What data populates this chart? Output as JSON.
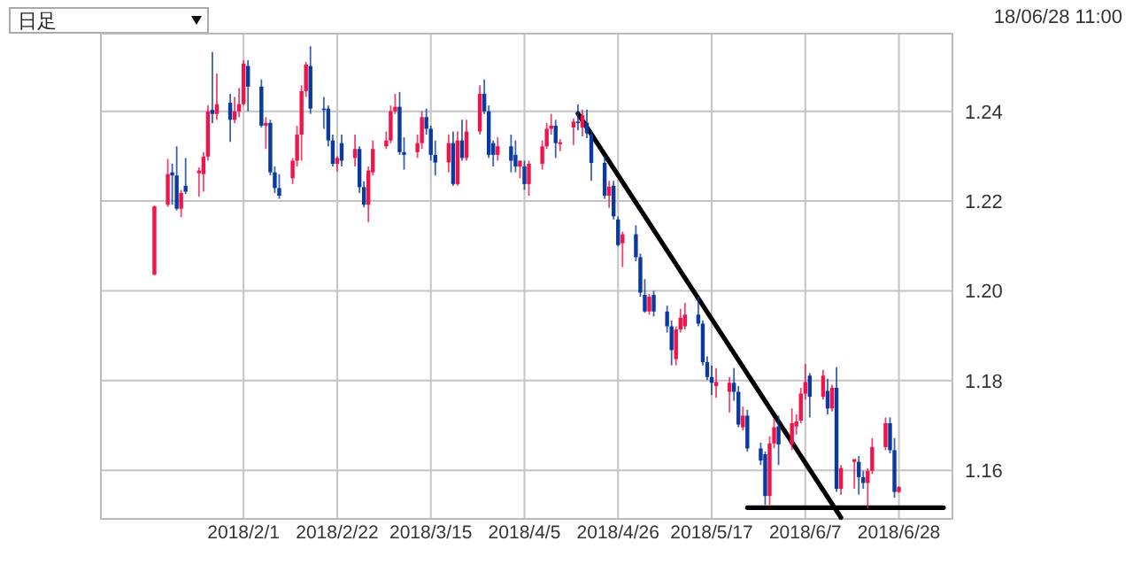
{
  "chart_data": {
    "type": "candlestick",
    "annotations": [
      "日足",
      "18/06/28 11:00"
    ],
    "grid": true,
    "xlim": [
      "2017-12-31",
      "2018-07-10"
    ],
    "ylim": [
      1.1492,
      1.2573
    ],
    "xticks": [
      {
        "value": "2018-02-01",
        "label": "2018/2/1"
      },
      {
        "value": "2018-02-22",
        "label": "2018/2/22"
      },
      {
        "value": "2018-03-15",
        "label": "2018/3/15"
      },
      {
        "value": "2018-04-05",
        "label": "2018/4/5"
      },
      {
        "value": "2018-04-26",
        "label": "2018/4/26"
      },
      {
        "value": "2018-05-17",
        "label": "2018/5/17"
      },
      {
        "value": "2018-06-07",
        "label": "2018/6/7"
      },
      {
        "value": "2018-06-28",
        "label": "2018/6/28"
      }
    ],
    "yticks": [
      1.16,
      1.18,
      {
        "value": 1.2,
        "label": "1.20"
      },
      1.22,
      1.24
    ],
    "series": [
      {
        "type": "candlestick",
        "x": [
          "2018-01-12",
          "2018-01-15",
          "2018-01-16",
          "2018-01-17",
          "2018-01-18",
          "2018-01-19",
          "2018-01-22",
          "2018-01-23",
          "2018-01-24",
          "2018-01-25",
          "2018-01-26",
          "2018-01-29",
          "2018-01-30",
          "2018-01-31",
          "2018-02-01",
          "2018-02-02",
          "2018-02-05",
          "2018-02-06",
          "2018-02-07",
          "2018-02-08",
          "2018-02-09",
          "2018-02-12",
          "2018-02-13",
          "2018-02-14",
          "2018-02-15",
          "2018-02-16",
          "2018-02-19",
          "2018-02-20",
          "2018-02-21",
          "2018-02-22",
          "2018-02-23",
          "2018-02-26",
          "2018-02-27",
          "2018-02-28",
          "2018-03-01",
          "2018-03-02",
          "2018-03-05",
          "2018-03-06",
          "2018-03-07",
          "2018-03-08",
          "2018-03-09",
          "2018-03-12",
          "2018-03-13",
          "2018-03-14",
          "2018-03-15",
          "2018-03-16",
          "2018-03-19",
          "2018-03-20",
          "2018-03-21",
          "2018-03-22",
          "2018-03-23",
          "2018-03-26",
          "2018-03-27",
          "2018-03-28",
          "2018-03-29",
          "2018-03-30",
          "2018-04-02",
          "2018-04-03",
          "2018-04-04",
          "2018-04-05",
          "2018-04-06",
          "2018-04-09",
          "2018-04-10",
          "2018-04-11",
          "2018-04-12",
          "2018-04-13",
          "2018-04-16",
          "2018-04-17",
          "2018-04-18",
          "2018-04-19",
          "2018-04-20",
          "2018-04-23",
          "2018-04-24",
          "2018-04-25",
          "2018-04-26",
          "2018-04-27",
          "2018-04-30",
          "2018-05-01",
          "2018-05-02",
          "2018-05-03",
          "2018-05-04",
          "2018-05-07",
          "2018-05-08",
          "2018-05-09",
          "2018-05-10",
          "2018-05-11",
          "2018-05-14",
          "2018-05-15",
          "2018-05-16",
          "2018-05-17",
          "2018-05-18",
          "2018-05-21",
          "2018-05-22",
          "2018-05-23",
          "2018-05-24",
          "2018-05-25",
          "2018-05-28",
          "2018-05-29",
          "2018-05-30",
          "2018-05-31",
          "2018-06-01",
          "2018-06-04",
          "2018-06-05",
          "2018-06-06",
          "2018-06-07",
          "2018-06-08",
          "2018-06-11",
          "2018-06-12",
          "2018-06-13",
          "2018-06-14",
          "2018-06-15",
          "2018-06-18",
          "2018-06-19",
          "2018-06-20",
          "2018-06-21",
          "2018-06-22",
          "2018-06-25",
          "2018-06-26",
          "2018-06-27",
          "2018-06-28"
        ],
        "ohlc": [
          [
            1.2036,
            1.219,
            1.2035,
            1.2188
          ],
          [
            1.2192,
            1.2294,
            1.2187,
            1.226
          ],
          [
            1.2264,
            1.2283,
            1.2192,
            1.2257
          ],
          [
            1.2257,
            1.2322,
            1.2179,
            1.2183
          ],
          [
            1.2183,
            1.2225,
            1.2164,
            1.2218
          ],
          [
            1.2234,
            1.2296,
            1.2216,
            1.2221
          ],
          [
            1.2262,
            1.2275,
            1.221,
            1.2268
          ],
          [
            1.226,
            1.2309,
            1.2221,
            1.2299
          ],
          [
            1.2299,
            1.2413,
            1.229,
            1.24
          ],
          [
            1.2403,
            1.2532,
            1.2374,
            1.2394
          ],
          [
            1.2394,
            1.2484,
            1.2381,
            1.2416
          ],
          [
            1.2419,
            1.2439,
            1.2332,
            1.2381
          ],
          [
            1.2381,
            1.2432,
            1.2374,
            1.24
          ],
          [
            1.24,
            1.2452,
            1.2387,
            1.2416
          ],
          [
            1.2416,
            1.2514,
            1.2413,
            1.2506
          ],
          [
            1.2501,
            1.2514,
            1.24,
            1.2455
          ],
          [
            1.2455,
            1.2471,
            1.2364,
            1.2368
          ],
          [
            1.2368,
            1.2387,
            1.2316,
            1.2374
          ],
          [
            1.2374,
            1.2381,
            1.2257,
            1.2264
          ],
          [
            1.2264,
            1.2277,
            1.2218,
            1.2229
          ],
          [
            1.2229,
            1.226,
            1.2205,
            1.2212
          ],
          [
            1.2251,
            1.2296,
            1.2238,
            1.229
          ],
          [
            1.229,
            1.2368,
            1.2277,
            1.2348
          ],
          [
            1.2348,
            1.2458,
            1.229,
            1.2445
          ],
          [
            1.2445,
            1.251,
            1.2432,
            1.2504
          ],
          [
            1.2501,
            1.2545,
            1.2394,
            1.2406
          ],
          [
            1.2406,
            1.2432,
            1.2361,
            1.2403
          ],
          [
            1.2406,
            1.2413,
            1.2322,
            1.2335
          ],
          [
            1.2335,
            1.2348,
            1.2277,
            1.2283
          ],
          [
            1.2283,
            1.23,
            1.2266,
            1.2296
          ],
          [
            1.2329,
            1.2348,
            1.2277,
            1.229
          ],
          [
            1.2296,
            1.2348,
            1.2277,
            1.2316
          ],
          [
            1.2316,
            1.2322,
            1.2218,
            1.2231
          ],
          [
            1.2231,
            1.2244,
            1.2186,
            1.2192
          ],
          [
            1.2192,
            1.2277,
            1.2153,
            1.2268
          ],
          [
            1.2264,
            1.2335,
            1.2257,
            1.2316
          ],
          [
            1.2322,
            1.2355,
            1.2316,
            1.2335
          ],
          [
            1.2335,
            1.2413,
            1.2329,
            1.24
          ],
          [
            1.24,
            1.2439,
            1.2394,
            1.241
          ],
          [
            1.241,
            1.2443,
            1.2303,
            1.2309
          ],
          [
            1.2309,
            1.2342,
            1.227,
            1.2303
          ],
          [
            1.2309,
            1.2348,
            1.2296,
            1.2329
          ],
          [
            1.2329,
            1.24,
            1.2316,
            1.2387
          ],
          [
            1.2387,
            1.2406,
            1.2348,
            1.2361
          ],
          [
            1.2361,
            1.2368,
            1.229,
            1.2303
          ],
          [
            1.2303,
            1.2335,
            1.2257,
            1.2286
          ],
          [
            1.2286,
            1.2348,
            1.2264,
            1.2329
          ],
          [
            1.2329,
            1.2355,
            1.2234,
            1.2238
          ],
          [
            1.2238,
            1.2355,
            1.2234,
            1.2335
          ],
          [
            1.2335,
            1.2381,
            1.229,
            1.2296
          ],
          [
            1.2296,
            1.2381,
            1.229,
            1.2355
          ],
          [
            1.2355,
            1.2458,
            1.2348,
            1.2439
          ],
          [
            1.2439,
            1.2471,
            1.2394,
            1.24
          ],
          [
            1.24,
            1.2413,
            1.2296,
            1.2303
          ],
          [
            1.2329,
            1.2335,
            1.2277,
            1.2303
          ],
          [
            1.2303,
            1.2342,
            1.229,
            1.2322
          ],
          [
            1.2322,
            1.2348,
            1.2264,
            1.229
          ],
          [
            1.2303,
            1.2335,
            1.2264,
            1.2277
          ],
          [
            1.2277,
            1.229,
            1.2251,
            1.229
          ],
          [
            1.2277,
            1.229,
            1.2225,
            1.2238
          ],
          [
            1.2238,
            1.229,
            1.2212,
            1.2283
          ],
          [
            1.2283,
            1.2335,
            1.227,
            1.2322
          ],
          [
            1.2322,
            1.2374,
            1.2316,
            1.2361
          ],
          [
            1.2361,
            1.2394,
            1.2348,
            1.2368
          ],
          [
            1.2368,
            1.2381,
            1.2296,
            1.2329
          ],
          [
            1.2327,
            1.2338,
            1.2311,
            1.2331
          ],
          [
            1.2364,
            1.2384,
            1.2325,
            1.2377
          ],
          [
            1.2377,
            1.2415,
            1.2358,
            1.2375
          ],
          [
            1.2364,
            1.2404,
            1.2344,
            1.2391
          ],
          [
            1.2375,
            1.2404,
            1.234,
            1.2351
          ],
          [
            1.2348,
            1.2358,
            1.2245,
            1.2285
          ],
          [
            1.2285,
            1.2298,
            1.2205,
            1.2212
          ],
          [
            1.2212,
            1.2245,
            1.2185,
            1.2232
          ],
          [
            1.2234,
            1.2245,
            1.2159,
            1.2166
          ],
          [
            1.2159,
            1.2166,
            1.2099,
            1.2102
          ],
          [
            1.2106,
            1.2132,
            1.2053,
            1.2126
          ],
          [
            1.2126,
            1.2146,
            1.2066,
            1.2075
          ],
          [
            1.2075,
            1.2083,
            1.1987,
            1.1996
          ],
          [
            1.1991,
            1.2026,
            1.1951,
            1.1954
          ],
          [
            1.1954,
            1.1993,
            1.1947,
            1.1987
          ],
          [
            1.1991,
            1.2,
            1.1943,
            1.1954
          ],
          [
            1.1954,
            1.1967,
            1.1907,
            1.1921
          ],
          [
            1.1921,
            1.1934,
            1.1834,
            1.1868
          ],
          [
            1.1848,
            1.1921,
            1.1834,
            1.1914
          ],
          [
            1.1914,
            1.196,
            1.1907,
            1.194
          ],
          [
            1.1921,
            1.1973,
            1.1914,
            1.1947
          ],
          [
            1.1947,
            1.1987,
            1.1921,
            1.1927
          ],
          [
            1.1927,
            1.1934,
            1.1834,
            1.1841
          ],
          [
            1.1841,
            1.1854,
            1.1801,
            1.1808
          ],
          [
            1.1808,
            1.1834,
            1.1768,
            1.1795
          ],
          [
            1.1788,
            1.1828,
            1.1762,
            1.1797
          ],
          [
            1.1775,
            1.1808,
            1.1729,
            1.1795
          ],
          [
            1.1795,
            1.1828,
            1.1755,
            1.1775
          ],
          [
            1.1775,
            1.1788,
            1.1696,
            1.1702
          ],
          [
            1.1696,
            1.1742,
            1.1689,
            1.1722
          ],
          [
            1.1722,
            1.1735,
            1.1642,
            1.1649
          ],
          [
            1.1649,
            1.1662,
            1.1612,
            1.1622
          ],
          [
            1.1636,
            1.1642,
            1.1523,
            1.1543
          ],
          [
            1.1543,
            1.1676,
            1.1523,
            1.166
          ],
          [
            1.166,
            1.1715,
            1.1649,
            1.1696
          ],
          [
            1.1698,
            1.1722,
            1.1612,
            1.1658
          ],
          [
            1.1658,
            1.1738,
            1.1645,
            1.1705
          ],
          [
            1.1698,
            1.1725,
            1.168,
            1.1709
          ],
          [
            1.1711,
            1.1784,
            1.1705,
            1.1771
          ],
          [
            1.1771,
            1.1837,
            1.1758,
            1.1797
          ],
          [
            1.1811,
            1.1817,
            1.1718,
            1.1764
          ],
          [
            1.1764,
            1.1824,
            1.1758,
            1.1811
          ],
          [
            1.1777,
            1.1804,
            1.1725,
            1.1738
          ],
          [
            1.1738,
            1.1791,
            1.1731,
            1.1784
          ],
          [
            1.1784,
            1.183,
            1.1552,
            1.1559
          ],
          [
            1.1559,
            1.1612,
            1.1546,
            1.1605
          ],
          [
            1.1619,
            1.1625,
            1.1559,
            1.1625
          ],
          [
            1.1619,
            1.1632,
            1.1546,
            1.1585
          ],
          [
            1.1585,
            1.1599,
            1.1559,
            1.1572
          ],
          [
            1.1572,
            1.1605,
            1.1515,
            1.1599
          ],
          [
            1.1599,
            1.1672,
            1.1592,
            1.1652
          ],
          [
            1.1652,
            1.1718,
            1.1645,
            1.1705
          ],
          [
            1.1705,
            1.1718,
            1.1638,
            1.1645
          ],
          [
            1.1645,
            1.1672,
            1.1539,
            1.1552
          ],
          [
            1.1552,
            1.1565,
            1.155,
            1.1563
          ]
        ],
        "colors": [
          "#f0144a",
          "#f0144a",
          "#0a3aa0",
          "#0a3aa0",
          "#f0144a",
          "#0a3aa0",
          "#f0144a",
          "#f0144a",
          "#f0144a",
          "#0a3aa0",
          "#f0144a",
          "#0a3aa0",
          "#f0144a",
          "#f0144a",
          "#f0144a",
          "#0a3aa0",
          "#0a3aa0",
          "#f0144a",
          "#0a3aa0",
          "#0a3aa0",
          "#0a3aa0",
          "#f0144a",
          "#f0144a",
          "#f0144a",
          "#f0144a",
          "#0a3aa0",
          "#0a3aa0",
          "#0a3aa0",
          "#0a3aa0",
          "#f0144a",
          "#0a3aa0",
          "#f0144a",
          "#0a3aa0",
          "#0a3aa0",
          "#f0144a",
          "#f0144a",
          "#f0144a",
          "#f0144a",
          "#f0144a",
          "#0a3aa0",
          "#0a3aa0",
          "#f0144a",
          "#f0144a",
          "#0a3aa0",
          "#0a3aa0",
          "#0a3aa0",
          "#f0144a",
          "#0a3aa0",
          "#f0144a",
          "#0a3aa0",
          "#f0144a",
          "#f0144a",
          "#0a3aa0",
          "#0a3aa0",
          "#0a3aa0",
          "#f0144a",
          "#0a3aa0",
          "#0a3aa0",
          "#f0144a",
          "#0a3aa0",
          "#f0144a",
          "#f0144a",
          "#f0144a",
          "#f0144a",
          "#0a3aa0",
          "#f0144a",
          "#f0144a",
          "#0a3aa0",
          "#f0144a",
          "#0a3aa0",
          "#0a3aa0",
          "#0a3aa0",
          "#f0144a",
          "#0a3aa0",
          "#0a3aa0",
          "#f0144a",
          "#0a3aa0",
          "#0a3aa0",
          "#0a3aa0",
          "#f0144a",
          "#0a3aa0",
          "#0a3aa0",
          "#0a3aa0",
          "#f0144a",
          "#f0144a",
          "#f0144a",
          "#0a3aa0",
          "#0a3aa0",
          "#0a3aa0",
          "#0a3aa0",
          "#f0144a",
          "#f0144a",
          "#0a3aa0",
          "#0a3aa0",
          "#f0144a",
          "#0a3aa0",
          "#0a3aa0",
          "#0a3aa0",
          "#f0144a",
          "#f0144a",
          "#0a3aa0",
          "#f0144a",
          "#f0144a",
          "#f0144a",
          "#f0144a",
          "#0a3aa0",
          "#f0144a",
          "#0a3aa0",
          "#f0144a",
          "#0a3aa0",
          "#f0144a",
          "#f0144a",
          "#0a3aa0",
          "#0a3aa0",
          "#f0144a",
          "#f0144a",
          "#f0144a",
          "#0a3aa0",
          "#0a3aa0",
          "#f0144a"
        ]
      },
      {
        "type": "line",
        "color": "#000000",
        "x": [
          "2018-04-17",
          "2018-06-15"
        ],
        "values": [
          1.2395,
          1.1495
        ]
      },
      {
        "type": "line",
        "color": "#000000",
        "x": [
          "2018-05-25",
          "2018-07-08"
        ],
        "values": [
          1.1517,
          1.1517
        ]
      }
    ]
  }
}
